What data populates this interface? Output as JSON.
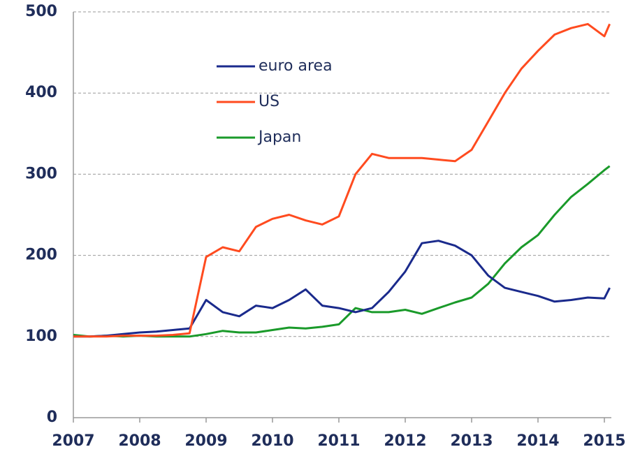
{
  "chart_data": {
    "type": "line",
    "x": [
      2007,
      2007.25,
      2007.5,
      2007.75,
      2008,
      2008.25,
      2008.5,
      2008.75,
      2009,
      2009.25,
      2009.5,
      2009.75,
      2010,
      2010.25,
      2010.5,
      2010.75,
      2011,
      2011.25,
      2011.5,
      2011.75,
      2012,
      2012.25,
      2012.5,
      2012.75,
      2013,
      2013.25,
      2013.5,
      2013.75,
      2014,
      2014.25,
      2014.5,
      2014.75,
      2015,
      2015.08
    ],
    "series": [
      {
        "name": "euro area",
        "color": "#1a2a8c",
        "values": [
          100,
          100,
          101,
          103,
          105,
          106,
          108,
          110,
          145,
          130,
          125,
          138,
          135,
          145,
          158,
          138,
          135,
          130,
          135,
          155,
          180,
          215,
          218,
          212,
          200,
          175,
          160,
          155,
          150,
          143,
          145,
          148,
          147,
          160
        ]
      },
      {
        "name": "US",
        "color": "#ff4b1f",
        "values": [
          100,
          100,
          100,
          101,
          101,
          101,
          102,
          104,
          198,
          210,
          205,
          235,
          245,
          250,
          243,
          238,
          248,
          300,
          325,
          320,
          320,
          320,
          318,
          316,
          330,
          365,
          400,
          430,
          452,
          472,
          480,
          485,
          470,
          485
        ]
      },
      {
        "name": "Japan",
        "color": "#1a9a2a",
        "values": [
          102,
          100,
          101,
          100,
          101,
          100,
          100,
          100,
          103,
          107,
          105,
          105,
          108,
          111,
          110,
          112,
          115,
          135,
          130,
          130,
          133,
          128,
          135,
          142,
          148,
          165,
          190,
          210,
          225,
          250,
          272,
          288,
          305,
          310
        ]
      }
    ],
    "xlim": [
      2007,
      2015.1
    ],
    "xticks": [
      2007,
      2008,
      2009,
      2010,
      2011,
      2012,
      2013,
      2014,
      2015
    ],
    "ylim": [
      0,
      500
    ],
    "yticks": [
      0,
      100,
      200,
      300,
      400,
      500
    ],
    "grid": true,
    "legend": "upper center"
  }
}
